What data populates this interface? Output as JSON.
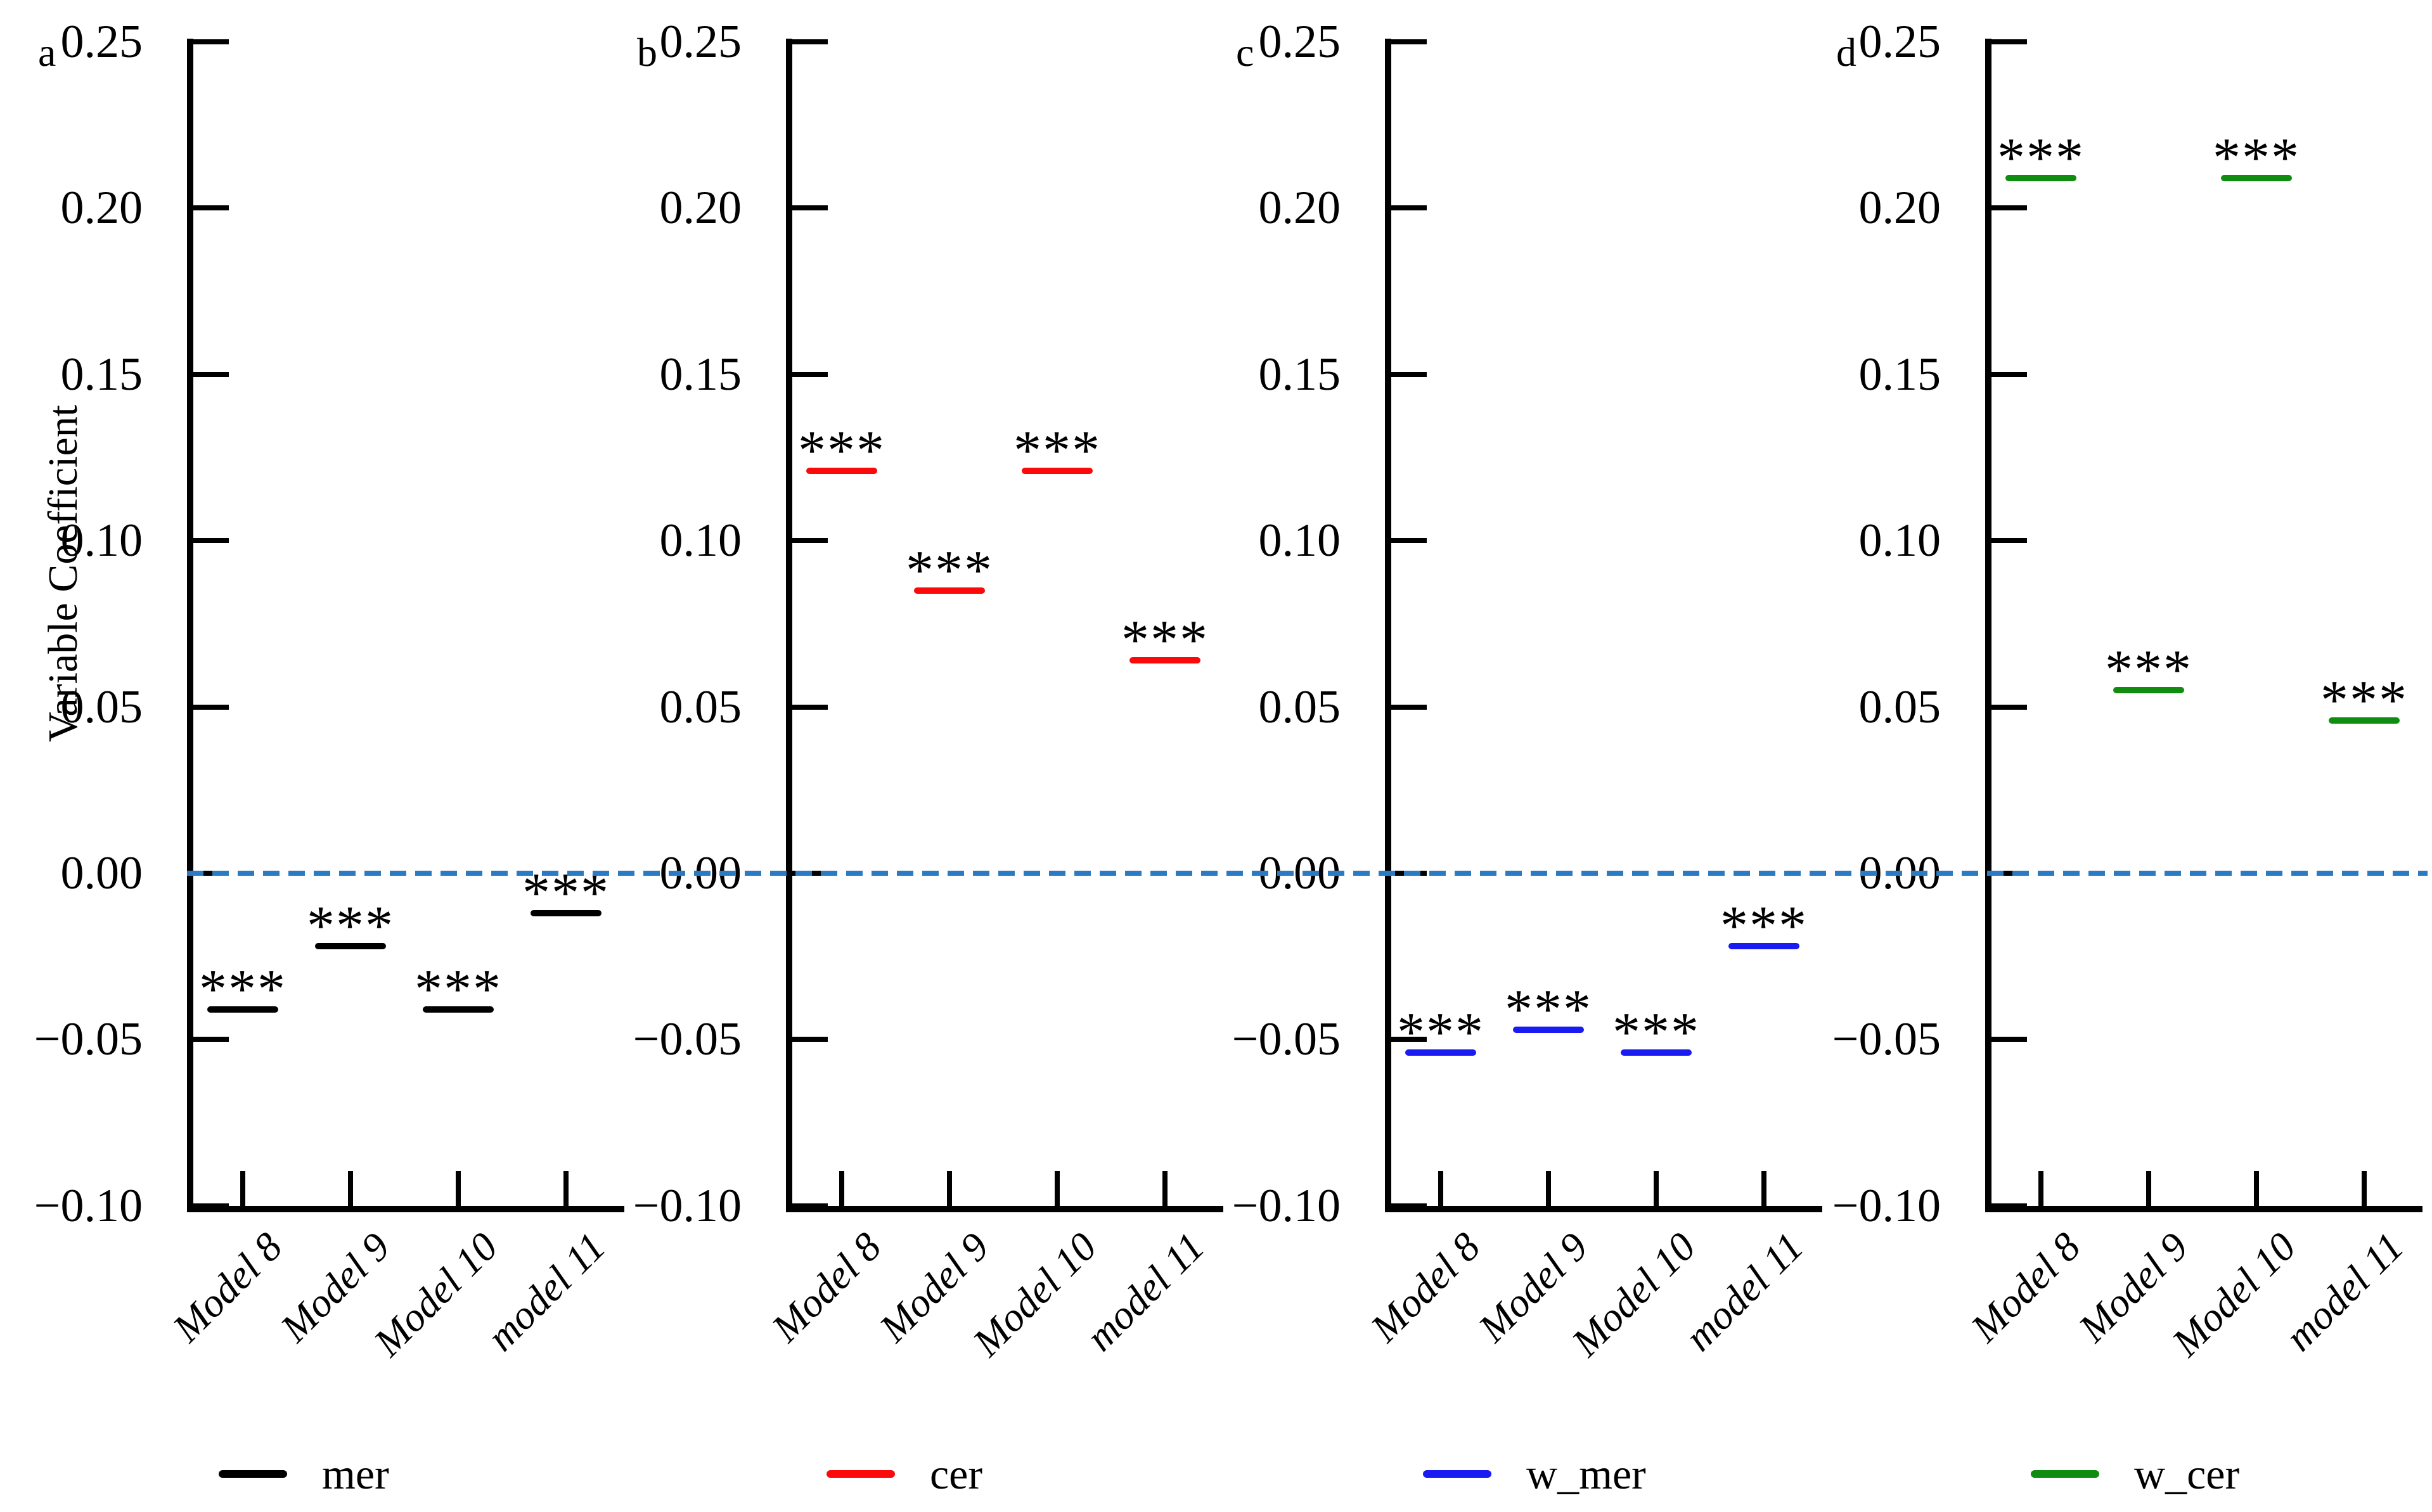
{
  "figure": {
    "ylabel": "Variable Coefficient",
    "background": "#ffffff"
  },
  "chart_data": {
    "type": "scatter",
    "marker_style": "horizontal-dash-with-significance-stars",
    "categories": [
      "Model 8",
      "Model 9",
      "Model 10",
      "model 11"
    ],
    "ylabel": "Variable Coefficient",
    "ylim": [
      -0.1,
      0.25
    ],
    "grid": false,
    "tick_direction": "in",
    "yticks": [
      {
        "value": 0.25,
        "label": "0.25"
      },
      {
        "value": 0.2,
        "label": "0.20"
      },
      {
        "value": 0.15,
        "label": "0.15"
      },
      {
        "value": 0.1,
        "label": "0.10"
      },
      {
        "value": 0.05,
        "label": "0.05"
      },
      {
        "value": 0.0,
        "label": "0.00"
      },
      {
        "value": -0.05,
        "label": "−0.05"
      },
      {
        "value": -0.1,
        "label": "−0.10"
      }
    ],
    "zero_line": {
      "value": 0,
      "style": "dashed",
      "color": "#2b7bc4"
    },
    "panels": [
      {
        "id": "a",
        "series": "mer",
        "color": "#000000",
        "values": [
          -0.041,
          -0.022,
          -0.041,
          -0.012
        ],
        "significance": [
          "***",
          "***",
          "***",
          "***"
        ]
      },
      {
        "id": "b",
        "series": "cer",
        "color": "#fa0a0a",
        "values": [
          0.121,
          0.085,
          0.121,
          0.064
        ],
        "significance": [
          "***",
          "***",
          "***",
          "***"
        ]
      },
      {
        "id": "c",
        "series": "w_mer",
        "color": "#1a1af2",
        "values": [
          -0.054,
          -0.047,
          -0.054,
          -0.022
        ],
        "significance": [
          "***",
          "***",
          "***",
          "***"
        ]
      },
      {
        "id": "d",
        "series": "w_cer",
        "color": "#108c10",
        "values": [
          0.209,
          0.055,
          0.209,
          0.046
        ],
        "significance": [
          "***",
          "***",
          "***",
          "***"
        ]
      }
    ],
    "legend": {
      "position": "bottom",
      "items": [
        {
          "label": "mer",
          "color": "#000000"
        },
        {
          "label": "cer",
          "color": "#fa0a0a"
        },
        {
          "label": "w_mer",
          "color": "#1a1af2"
        },
        {
          "label": "w_cer",
          "color": "#108c10"
        }
      ]
    }
  }
}
